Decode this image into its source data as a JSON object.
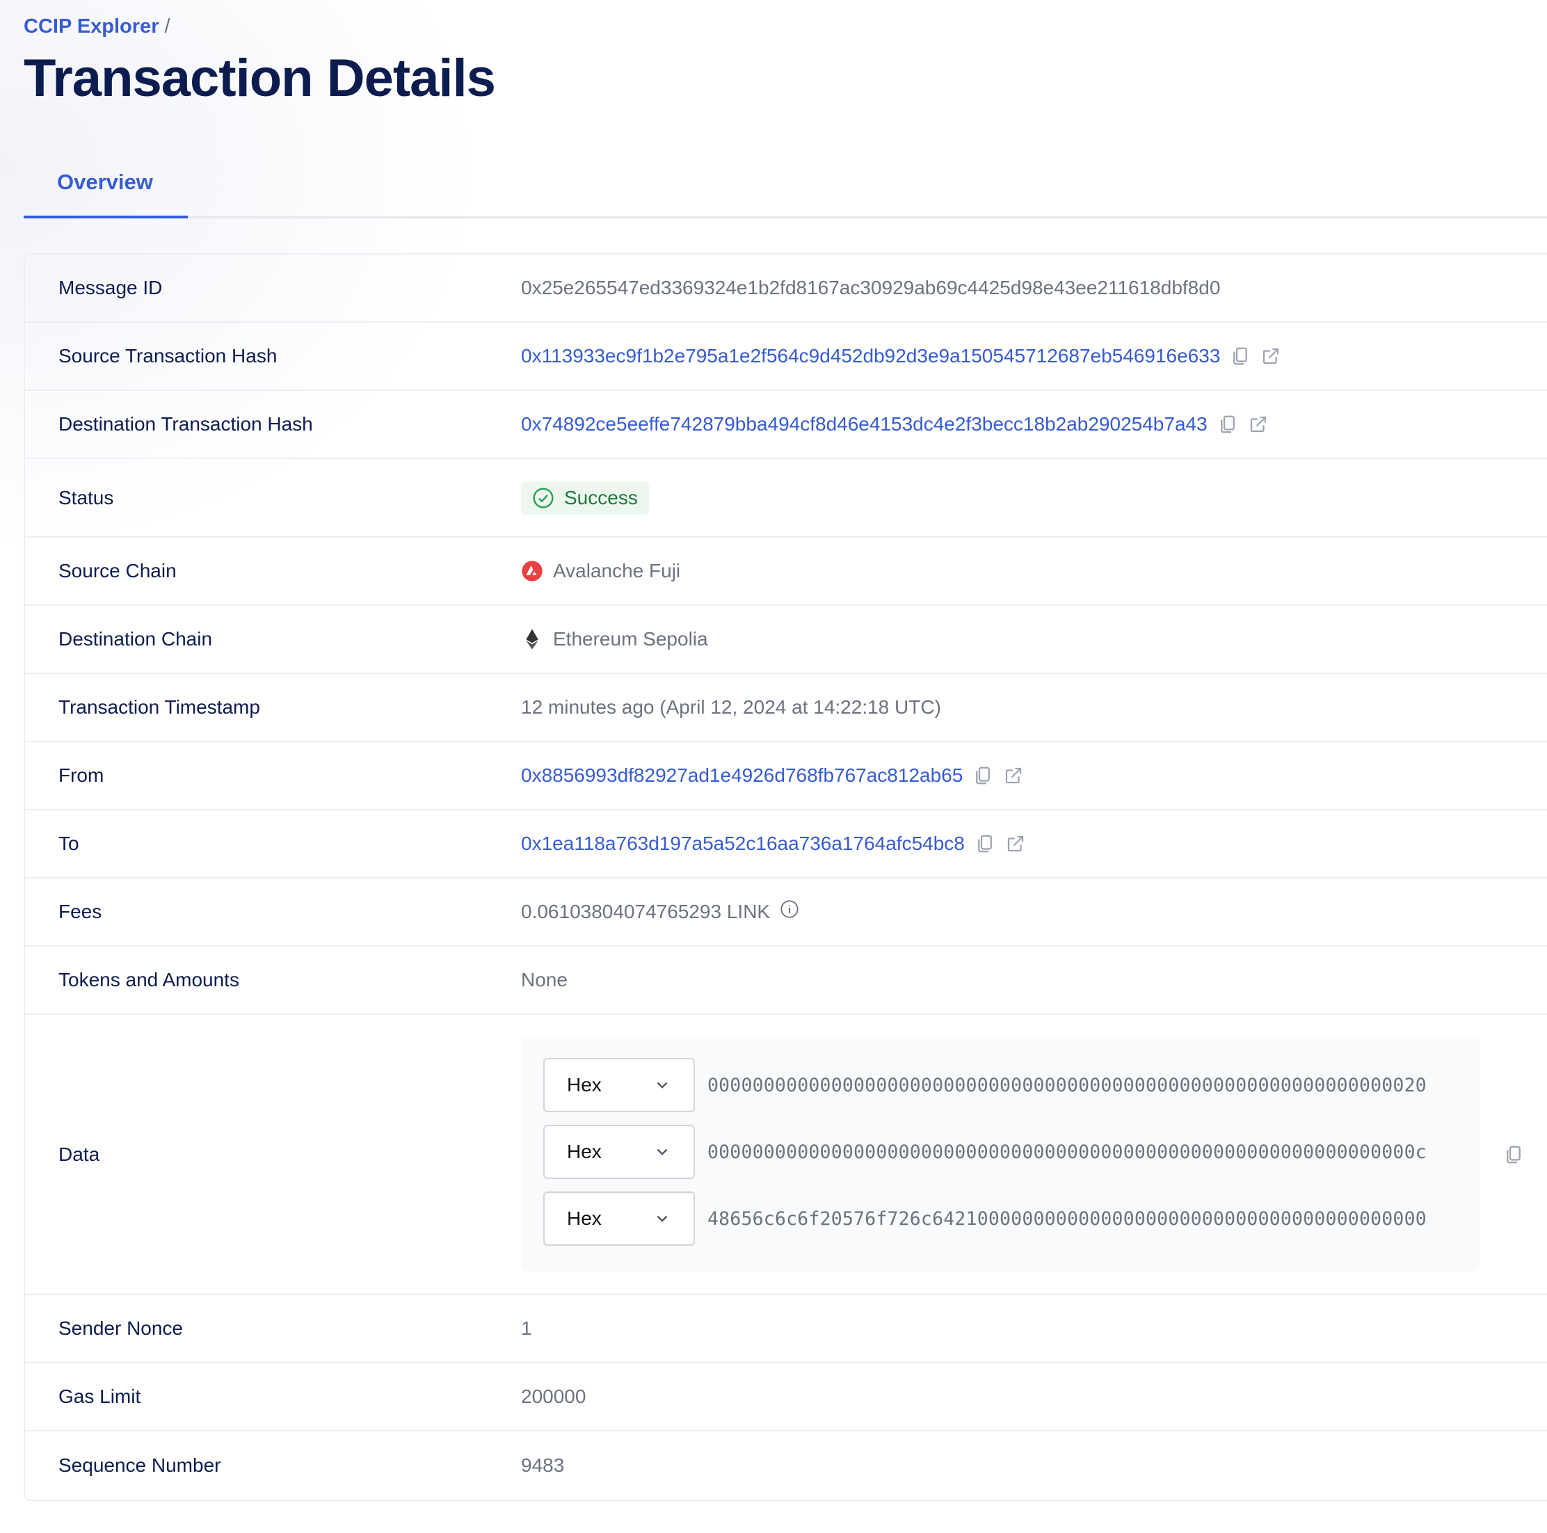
{
  "breadcrumb": {
    "root": "CCIP Explorer",
    "separator": "/"
  },
  "page_title": "Transaction Details",
  "tabs": [
    {
      "label": "Overview",
      "active": true
    }
  ],
  "colors": {
    "accent": "#375bd2",
    "success": "#1f7a3a",
    "success_bg": "#edf7ef",
    "avalanche": "#e84142"
  },
  "rows": {
    "message_id": {
      "label": "Message ID",
      "value": "0x25e265547ed3369324e1b2fd8167ac30929ab69c4425d98e43ee211618dbf8d0"
    },
    "source_tx": {
      "label": "Source Transaction Hash",
      "value": "0x113933ec9f1b2e795a1e2f564c9d452db92d3e9a150545712687eb546916e633"
    },
    "dest_tx": {
      "label": "Destination Transaction Hash",
      "value": "0x74892ce5eeffe742879bba494cf8d46e4153dc4e2f3becc18b2ab290254b7a43"
    },
    "status": {
      "label": "Status",
      "value": "Success",
      "icon": "check-circle-icon"
    },
    "source_chain": {
      "label": "Source Chain",
      "value": "Avalanche Fuji",
      "icon": "avalanche-icon"
    },
    "dest_chain": {
      "label": "Destination Chain",
      "value": "Ethereum Sepolia",
      "icon": "ethereum-icon"
    },
    "timestamp": {
      "label": "Transaction Timestamp",
      "value": "12 minutes ago (April 12, 2024 at 14:22:18 UTC)"
    },
    "from": {
      "label": "From",
      "value": "0x8856993df82927ad1e4926d768fb767ac812ab65"
    },
    "to": {
      "label": "To",
      "value": "0x1ea118a763d197a5a52c16aa736a1764afc54bc8"
    },
    "fees": {
      "label": "Fees",
      "value": "0.06103804074765293 LINK",
      "icon": "info-icon"
    },
    "tokens": {
      "label": "Tokens and Amounts",
      "value": "None"
    },
    "data": {
      "label": "Data",
      "lines": [
        {
          "format": "Hex",
          "value": "0000000000000000000000000000000000000000000000000000000000000020"
        },
        {
          "format": "Hex",
          "value": "000000000000000000000000000000000000000000000000000000000000000c"
        },
        {
          "format": "Hex",
          "value": "48656c6c6f20576f726c64210000000000000000000000000000000000000000"
        }
      ]
    },
    "nonce": {
      "label": "Sender Nonce",
      "value": "1"
    },
    "gas": {
      "label": "Gas Limit",
      "value": "200000"
    },
    "sequence": {
      "label": "Sequence Number",
      "value": "9483"
    }
  }
}
